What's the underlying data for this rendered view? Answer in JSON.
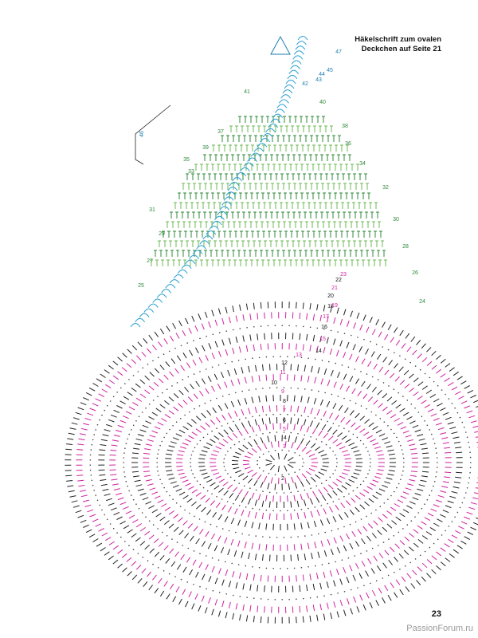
{
  "header": {
    "lines": [
      "Häkelschrift zum ovalen",
      "Deckchen auf Seite 21"
    ]
  },
  "diagram": {
    "row_numbers": [
      "2",
      "3",
      "4",
      "5",
      "6",
      "7",
      "8",
      "9",
      "10",
      "11",
      "12",
      "13",
      "14",
      "15",
      "16",
      "17",
      "18",
      "19",
      "20",
      "21",
      "22",
      "23",
      "24",
      "25",
      "26",
      "27",
      "28",
      "29",
      "30",
      "31",
      "32",
      "33",
      "34",
      "35",
      "36",
      "37",
      "38",
      "39",
      "40",
      "41",
      "42",
      "43",
      "44",
      "45",
      "46",
      "47"
    ]
  },
  "footer": {
    "page_number": "23",
    "watermark": "PassionForum.ru"
  }
}
